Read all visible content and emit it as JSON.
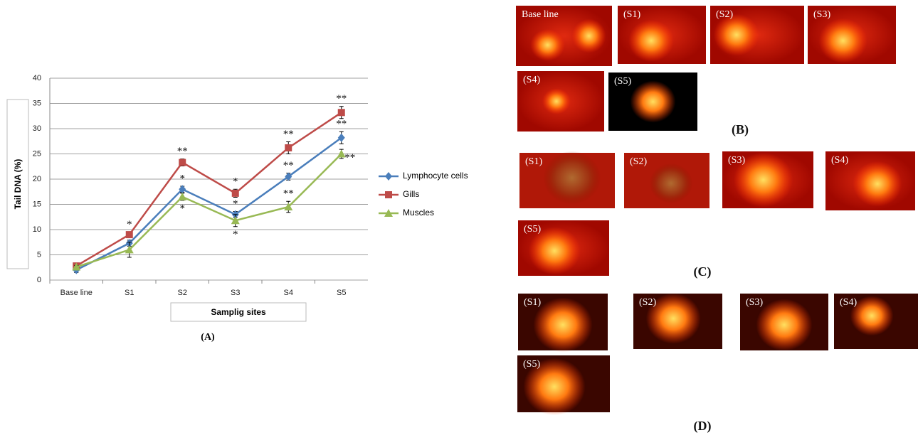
{
  "chart_data": {
    "type": "line",
    "caption": "(A)",
    "x_label": "Samplig sites",
    "y_label": "Tail DNA (%)",
    "categories": [
      "Base line",
      "S1",
      "S2",
      "S3",
      "S4",
      "S5"
    ],
    "ylim": [
      0,
      40
    ],
    "yticks": [
      0,
      5,
      10,
      15,
      20,
      25,
      30,
      35,
      40
    ],
    "grid": true,
    "legend": "right",
    "series": [
      {
        "name": "Lymphocyte cells",
        "color": "#4a7ebb",
        "marker": "diamond",
        "values": [
          2,
          7.3,
          18,
          13,
          20.5,
          28.2
        ],
        "errors": [
          0.5,
          0.6,
          0.6,
          0.6,
          0.7,
          1.2
        ],
        "significance": [
          null,
          null,
          "*",
          "*",
          "**",
          "**"
        ]
      },
      {
        "name": "Gills",
        "color": "#be4b48",
        "marker": "square",
        "values": [
          2.8,
          9,
          23.3,
          17.2,
          26.2,
          33.2
        ],
        "errors": [
          0.4,
          0.5,
          0.7,
          0.8,
          1.2,
          1.2
        ],
        "significance": [
          null,
          "*",
          "**",
          "*",
          "**",
          "**"
        ]
      },
      {
        "name": "Muscles",
        "color": "#98b954",
        "marker": "triangle",
        "values": [
          2.6,
          6,
          16.5,
          11.8,
          14.5,
          25
        ],
        "errors": [
          0.3,
          1.5,
          0.7,
          1.2,
          1.1,
          0.9
        ],
        "significance": [
          null,
          null,
          "*",
          "*",
          "**",
          "**"
        ]
      }
    ]
  },
  "panels": [
    {
      "caption": "(B)",
      "images": [
        "Base line",
        "(S1)",
        "(S2)",
        "(S3)",
        "(S4)",
        "(S5)"
      ]
    },
    {
      "caption": "(C)",
      "images": [
        "(S1)",
        "(S2)",
        "(S3)",
        "(S4)",
        "(S5)"
      ]
    },
    {
      "caption": "(D)",
      "images": [
        "(S1)",
        "(S2)",
        "(S3)",
        "(S4)",
        "(S5)"
      ]
    }
  ]
}
